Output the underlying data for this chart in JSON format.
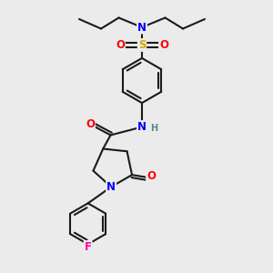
{
  "bg_color": "#ebebeb",
  "bond_color": "#1a1a1a",
  "bond_width": 1.5,
  "atom_colors": {
    "N": "#0000ff",
    "O": "#ff0000",
    "S": "#ccaa00",
    "F": "#ff00aa",
    "H": "#558888",
    "C": "#1a1a1a"
  },
  "font_size_atom": 8.5,
  "font_size_small": 7.0,
  "figsize": [
    3.0,
    3.0
  ],
  "dpi": 100,
  "xlim": [
    0,
    10
  ],
  "ylim": [
    0,
    10
  ]
}
